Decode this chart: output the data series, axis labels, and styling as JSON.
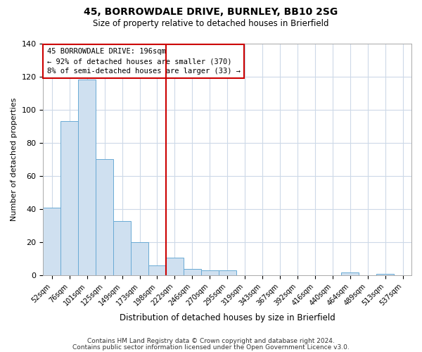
{
  "title": "45, BORROWDALE DRIVE, BURNLEY, BB10 2SG",
  "subtitle": "Size of property relative to detached houses in Brierfield",
  "xlabel": "Distribution of detached houses by size in Brierfield",
  "ylabel": "Number of detached properties",
  "bar_labels": [
    "52sqm",
    "76sqm",
    "101sqm",
    "125sqm",
    "149sqm",
    "173sqm",
    "198sqm",
    "222sqm",
    "246sqm",
    "270sqm",
    "295sqm",
    "319sqm",
    "343sqm",
    "367sqm",
    "392sqm",
    "416sqm",
    "440sqm",
    "464sqm",
    "489sqm",
    "513sqm",
    "537sqm"
  ],
  "bar_values": [
    41,
    93,
    118,
    70,
    33,
    20,
    6,
    11,
    4,
    3,
    3,
    0,
    0,
    0,
    0,
    0,
    0,
    2,
    0,
    1,
    0
  ],
  "bar_color": "#cfe0f0",
  "bar_edge_color": "#6aaad4",
  "vline_x_index": 6,
  "vline_color": "#cc0000",
  "annotation_title": "45 BORROWDALE DRIVE: 196sqm",
  "annotation_line1": "← 92% of detached houses are smaller (370)",
  "annotation_line2": "8% of semi-detached houses are larger (33) →",
  "annotation_box_edgecolor": "#cc0000",
  "ylim": [
    0,
    140
  ],
  "yticks": [
    0,
    20,
    40,
    60,
    80,
    100,
    120,
    140
  ],
  "footer1": "Contains HM Land Registry data © Crown copyright and database right 2024.",
  "footer2": "Contains public sector information licensed under the Open Government Licence v3.0.",
  "bg_color": "#ffffff",
  "grid_color": "#cdd9e8"
}
